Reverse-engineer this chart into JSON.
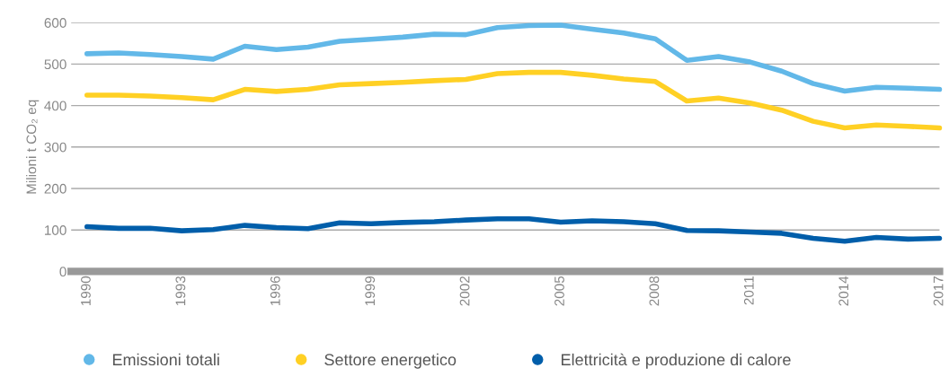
{
  "chart_data": {
    "type": "line",
    "ylabel": "Milioni t CO₂ eq",
    "x": [
      1990,
      1991,
      1992,
      1993,
      1994,
      1995,
      1996,
      1997,
      1998,
      1999,
      2000,
      2001,
      2002,
      2003,
      2004,
      2005,
      2006,
      2007,
      2008,
      2009,
      2010,
      2011,
      2012,
      2013,
      2014,
      2015,
      2016,
      2017
    ],
    "xlim": [
      1989.5,
      2017
    ],
    "xticks": [
      1990,
      1993,
      1996,
      1999,
      2002,
      2005,
      2008,
      2011,
      2014,
      2017
    ],
    "ylim": [
      0,
      600
    ],
    "yticks": [
      0,
      100,
      200,
      300,
      400,
      500,
      600
    ],
    "grid": "y",
    "legend": "bottom",
    "marker": "none",
    "line_style": "solid",
    "series": [
      {
        "name": "Emissioni totali",
        "color": "#62b8e8",
        "values": [
          525,
          527,
          523,
          518,
          512,
          543,
          535,
          541,
          555,
          560,
          565,
          572,
          571,
          588,
          593,
          594,
          584,
          575,
          561,
          509,
          518,
          505,
          483,
          453,
          435,
          444,
          442,
          439
        ]
      },
      {
        "name": "Settore energetico",
        "color": "#ffd024",
        "values": [
          425,
          425,
          423,
          419,
          414,
          439,
          434,
          439,
          450,
          453,
          456,
          460,
          463,
          477,
          480,
          480,
          473,
          464,
          458,
          411,
          418,
          406,
          389,
          362,
          346,
          353,
          350,
          346
        ]
      },
      {
        "name": "Elettricità e produzione di calore",
        "color": "#005eaa",
        "values": [
          108,
          104,
          104,
          98,
          101,
          111,
          106,
          103,
          117,
          115,
          118,
          120,
          124,
          127,
          127,
          119,
          122,
          120,
          115,
          99,
          98,
          95,
          92,
          80,
          73,
          82,
          78,
          80
        ]
      }
    ]
  }
}
